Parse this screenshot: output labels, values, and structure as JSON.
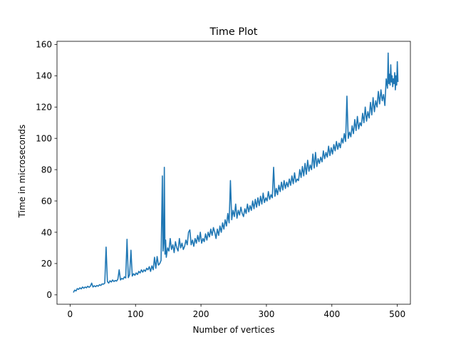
{
  "chart_data": {
    "type": "line",
    "title": "Time Plot",
    "xlabel": "Number of vertices",
    "ylabel": "Time in microseconds",
    "xlim": [
      -20,
      520
    ],
    "ylim": [
      -6,
      162
    ],
    "xticks": [
      0,
      100,
      200,
      300,
      400,
      500
    ],
    "yticks": [
      0,
      20,
      40,
      60,
      80,
      100,
      120,
      140,
      160
    ],
    "grid": false,
    "series": [
      {
        "color": "#1f77b4",
        "points": [
          [
            5,
            1.5
          ],
          [
            7,
            3
          ],
          [
            9,
            2.5
          ],
          [
            11,
            4
          ],
          [
            13,
            3.5
          ],
          [
            15,
            4.5
          ],
          [
            17,
            3.8
          ],
          [
            19,
            5
          ],
          [
            21,
            4.2
          ],
          [
            23,
            5
          ],
          [
            25,
            4.5
          ],
          [
            27,
            5.5
          ],
          [
            29,
            4.8
          ],
          [
            31,
            5.5
          ],
          [
            33,
            7.5
          ],
          [
            35,
            5
          ],
          [
            37,
            5.8
          ],
          [
            39,
            5.2
          ],
          [
            41,
            6
          ],
          [
            43,
            5.5
          ],
          [
            45,
            6.5
          ],
          [
            47,
            6
          ],
          [
            49,
            7
          ],
          [
            51,
            6.8
          ],
          [
            53,
            7.5
          ],
          [
            55,
            30.5
          ],
          [
            57,
            8.5
          ],
          [
            59,
            7.5
          ],
          [
            61,
            9
          ],
          [
            63,
            8.2
          ],
          [
            65,
            9.5
          ],
          [
            67,
            8.5
          ],
          [
            69,
            9.2
          ],
          [
            71,
            8.8
          ],
          [
            73,
            10
          ],
          [
            75,
            16
          ],
          [
            77,
            9.5
          ],
          [
            79,
            10.5
          ],
          [
            81,
            10
          ],
          [
            83,
            11.5
          ],
          [
            85,
            10.8
          ],
          [
            87,
            35.5
          ],
          [
            89,
            11
          ],
          [
            91,
            13
          ],
          [
            93,
            28.5
          ],
          [
            95,
            12
          ],
          [
            97,
            13.5
          ],
          [
            99,
            12.5
          ],
          [
            101,
            14
          ],
          [
            103,
            13
          ],
          [
            105,
            15
          ],
          [
            107,
            14
          ],
          [
            109,
            16
          ],
          [
            111,
            14.5
          ],
          [
            113,
            16
          ],
          [
            115,
            15
          ],
          [
            117,
            17
          ],
          [
            119,
            16
          ],
          [
            121,
            18
          ],
          [
            123,
            15
          ],
          [
            125,
            18.5
          ],
          [
            127,
            16
          ],
          [
            129,
            24
          ],
          [
            131,
            17
          ],
          [
            133,
            24.5
          ],
          [
            135,
            19
          ],
          [
            137,
            20
          ],
          [
            139,
            22
          ],
          [
            141,
            76
          ],
          [
            142,
            28
          ],
          [
            143,
            33
          ],
          [
            144,
            81.5
          ],
          [
            145,
            26
          ],
          [
            146,
            35
          ],
          [
            147,
            24
          ],
          [
            149,
            30
          ],
          [
            151,
            28
          ],
          [
            153,
            36
          ],
          [
            155,
            29
          ],
          [
            157,
            32
          ],
          [
            159,
            27
          ],
          [
            161,
            34
          ],
          [
            163,
            30
          ],
          [
            165,
            28
          ],
          [
            167,
            36
          ],
          [
            169,
            30
          ],
          [
            171,
            33
          ],
          [
            173,
            29
          ],
          [
            175,
            31
          ],
          [
            177,
            35
          ],
          [
            179,
            32
          ],
          [
            181,
            40
          ],
          [
            183,
            41.5
          ],
          [
            185,
            32
          ],
          [
            187,
            35
          ],
          [
            189,
            31
          ],
          [
            191,
            36
          ],
          [
            193,
            33
          ],
          [
            195,
            38
          ],
          [
            197,
            34
          ],
          [
            199,
            40
          ],
          [
            201,
            33
          ],
          [
            203,
            36
          ],
          [
            205,
            34
          ],
          [
            207,
            39
          ],
          [
            209,
            35
          ],
          [
            211,
            40
          ],
          [
            213,
            37
          ],
          [
            215,
            42
          ],
          [
            217,
            38
          ],
          [
            219,
            43
          ],
          [
            221,
            40
          ],
          [
            223,
            36
          ],
          [
            225,
            42
          ],
          [
            227,
            38
          ],
          [
            229,
            44
          ],
          [
            231,
            40
          ],
          [
            233,
            46
          ],
          [
            235,
            42
          ],
          [
            237,
            48
          ],
          [
            239,
            44
          ],
          [
            241,
            52
          ],
          [
            243,
            46
          ],
          [
            245,
            73
          ],
          [
            247,
            48
          ],
          [
            249,
            54
          ],
          [
            251,
            50
          ],
          [
            253,
            58
          ],
          [
            255,
            49
          ],
          [
            257,
            54
          ],
          [
            259,
            51
          ],
          [
            261,
            56
          ],
          [
            263,
            52
          ],
          [
            265,
            50
          ],
          [
            267,
            55
          ],
          [
            269,
            52
          ],
          [
            271,
            58
          ],
          [
            273,
            53
          ],
          [
            275,
            57
          ],
          [
            277,
            54
          ],
          [
            279,
            60
          ],
          [
            281,
            55
          ],
          [
            283,
            61
          ],
          [
            285,
            56
          ],
          [
            287,
            62
          ],
          [
            289,
            57
          ],
          [
            291,
            63
          ],
          [
            293,
            58
          ],
          [
            295,
            65
          ],
          [
            297,
            59
          ],
          [
            299,
            62
          ],
          [
            301,
            60
          ],
          [
            303,
            66
          ],
          [
            305,
            61
          ],
          [
            307,
            64
          ],
          [
            309,
            62
          ],
          [
            311,
            81.5
          ],
          [
            313,
            63
          ],
          [
            315,
            68
          ],
          [
            317,
            64
          ],
          [
            319,
            70
          ],
          [
            321,
            66
          ],
          [
            323,
            72
          ],
          [
            325,
            67
          ],
          [
            327,
            73
          ],
          [
            329,
            68
          ],
          [
            331,
            72
          ],
          [
            333,
            69
          ],
          [
            335,
            74
          ],
          [
            337,
            70
          ],
          [
            339,
            76
          ],
          [
            341,
            71
          ],
          [
            343,
            78
          ],
          [
            345,
            72
          ],
          [
            347,
            74
          ],
          [
            349,
            73
          ],
          [
            351,
            80
          ],
          [
            353,
            75
          ],
          [
            355,
            82
          ],
          [
            357,
            76
          ],
          [
            359,
            84
          ],
          [
            361,
            77
          ],
          [
            363,
            86
          ],
          [
            365,
            79
          ],
          [
            367,
            83
          ],
          [
            369,
            80
          ],
          [
            371,
            90
          ],
          [
            373,
            81
          ],
          [
            375,
            91
          ],
          [
            377,
            82
          ],
          [
            379,
            87
          ],
          [
            381,
            84
          ],
          [
            383,
            88
          ],
          [
            385,
            85
          ],
          [
            387,
            92
          ],
          [
            389,
            87
          ],
          [
            391,
            91
          ],
          [
            393,
            88
          ],
          [
            395,
            95
          ],
          [
            397,
            89
          ],
          [
            399,
            94
          ],
          [
            401,
            90
          ],
          [
            403,
            96
          ],
          [
            405,
            92
          ],
          [
            407,
            98
          ],
          [
            409,
            93
          ],
          [
            411,
            97
          ],
          [
            413,
            94
          ],
          [
            415,
            100
          ],
          [
            417,
            97
          ],
          [
            419,
            103
          ],
          [
            421,
            98
          ],
          [
            423,
            127
          ],
          [
            425,
            100
          ],
          [
            427,
            104
          ],
          [
            429,
            101
          ],
          [
            431,
            108
          ],
          [
            433,
            103
          ],
          [
            435,
            112
          ],
          [
            437,
            105
          ],
          [
            439,
            114
          ],
          [
            441,
            106
          ],
          [
            443,
            110
          ],
          [
            445,
            108
          ],
          [
            447,
            116
          ],
          [
            449,
            110
          ],
          [
            451,
            120
          ],
          [
            453,
            111
          ],
          [
            455,
            117
          ],
          [
            457,
            113
          ],
          [
            459,
            123
          ],
          [
            461,
            115
          ],
          [
            463,
            126
          ],
          [
            465,
            117
          ],
          [
            467,
            124
          ],
          [
            469,
            120
          ],
          [
            471,
            130
          ],
          [
            473,
            122
          ],
          [
            475,
            131
          ],
          [
            477,
            124
          ],
          [
            479,
            128
          ],
          [
            481,
            121
          ],
          [
            483,
            138
          ],
          [
            485,
            132
          ],
          [
            486,
            154.5
          ],
          [
            487,
            135
          ],
          [
            488,
            141
          ],
          [
            489,
            134
          ],
          [
            490,
            147
          ],
          [
            491,
            136
          ],
          [
            492,
            140
          ],
          [
            493,
            133
          ],
          [
            494,
            138
          ],
          [
            495,
            135
          ],
          [
            496,
            142
          ],
          [
            497,
            131
          ],
          [
            498,
            140
          ],
          [
            499,
            134
          ],
          [
            500,
            149
          ],
          [
            501,
            136
          ]
        ]
      }
    ]
  }
}
